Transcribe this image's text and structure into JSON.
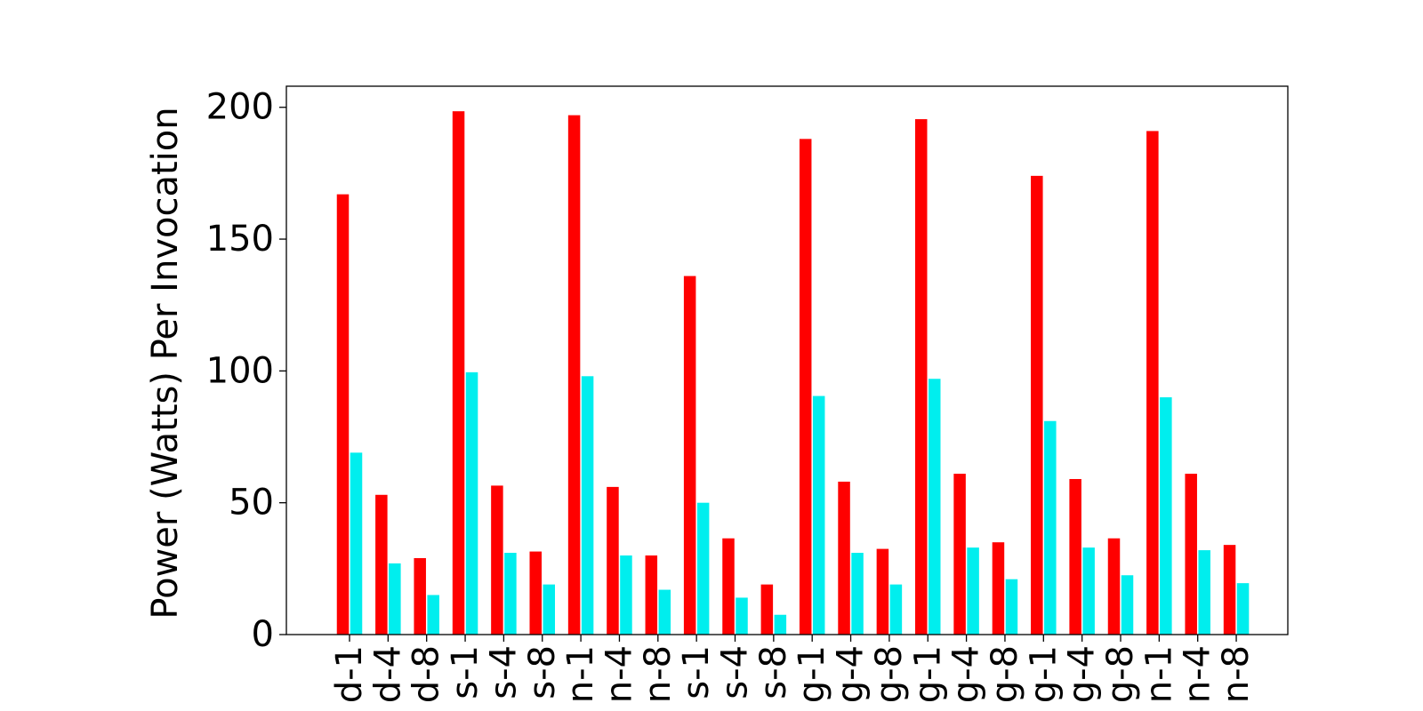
{
  "chart_data": {
    "type": "bar",
    "title": "",
    "xlabel": "",
    "ylabel": "Power (Watts) Per Invocation",
    "ylim": [
      0,
      208
    ],
    "yticks": [
      0,
      50,
      100,
      150,
      200
    ],
    "grid": false,
    "legend": "none",
    "categories": [
      "d-1",
      "d-4",
      "d-8",
      "s-1",
      "s-4",
      "s-8",
      "n-1",
      "n-4",
      "n-8",
      "s-1",
      "s-4",
      "s-8",
      "g-1",
      "g-4",
      "g-8",
      "g-1",
      "g-4",
      "g-8",
      "g-1",
      "g-4",
      "g-8",
      "n-1",
      "n-4",
      "n-8"
    ],
    "series": [
      {
        "color": "#ff0000",
        "values": [
          167,
          53,
          29,
          198.5,
          56.5,
          31.5,
          197,
          56,
          30,
          136,
          36.5,
          19,
          188,
          58,
          32.5,
          195.5,
          61,
          35,
          174,
          59,
          36.5,
          191,
          61,
          34
        ]
      },
      {
        "color": "#00eeee",
        "values": [
          69,
          27,
          15,
          99.5,
          31,
          19,
          98,
          30,
          17,
          50,
          14,
          7.5,
          90.5,
          31,
          19,
          97,
          33,
          21,
          81,
          33,
          22.5,
          90,
          32,
          19.5
        ]
      }
    ]
  }
}
